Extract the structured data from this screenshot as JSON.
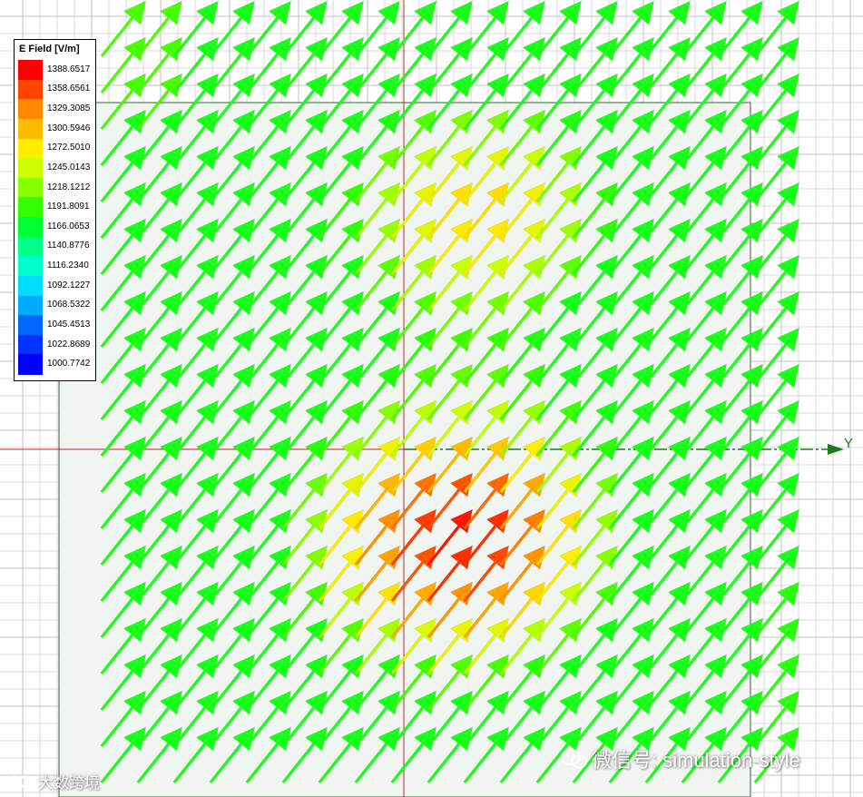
{
  "legend": {
    "title": "E Field [V/m]",
    "levels": [
      {
        "value": "1388.6517",
        "color": "#ff0000"
      },
      {
        "value": "1358.6561",
        "color": "#ff4400"
      },
      {
        "value": "1329.3085",
        "color": "#ff8800"
      },
      {
        "value": "1300.5946",
        "color": "#ffbb00"
      },
      {
        "value": "1272.5010",
        "color": "#ffee00"
      },
      {
        "value": "1245.0143",
        "color": "#ccff00"
      },
      {
        "value": "1218.1212",
        "color": "#88ff00"
      },
      {
        "value": "1191.8091",
        "color": "#33ff00"
      },
      {
        "value": "1166.0653",
        "color": "#00ff33"
      },
      {
        "value": "1140.8776",
        "color": "#00ff88"
      },
      {
        "value": "1116.2340",
        "color": "#00ffcc"
      },
      {
        "value": "1092.1227",
        "color": "#00ddff"
      },
      {
        "value": "1068.5322",
        "color": "#00aaff"
      },
      {
        "value": "1045.4513",
        "color": "#0066ff"
      },
      {
        "value": "1022.8689",
        "color": "#0033ff"
      },
      {
        "value": "1000.7742",
        "color": "#0000ff"
      }
    ]
  },
  "axis": {
    "y_label": "Y",
    "y_color": "#1d7a1d",
    "x_color": "#cc2222"
  },
  "watermarks": {
    "right": "微信号: simulation-style",
    "left": "大数跨境"
  },
  "icons": {
    "wechat": "wechat-icon",
    "left_logo": "logo-icon"
  }
}
